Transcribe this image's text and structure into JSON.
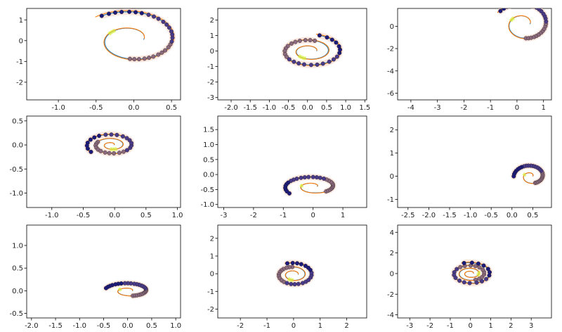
{
  "figure": {
    "rows": 3,
    "cols": 3,
    "colors": {
      "blue_curve": "#1f77b4",
      "orange_curve": "#ff7f0e",
      "marker_dark": "#1c1a7a",
      "marker_light": "#8c6a7d",
      "highlight": "#d9f23a",
      "halo": "#f6d6c8"
    }
  },
  "chart_data": [
    {
      "type": "line",
      "panel": "r1c1",
      "xlim": [
        -1.42,
        0.62
      ],
      "ylim": [
        -2.85,
        1.55
      ],
      "xticks": [
        "-1.0",
        "-0.5",
        "0.0",
        "0.5"
      ],
      "xtick_values": [
        -1.0,
        -0.5,
        0.0,
        0.5
      ],
      "yticks": [
        "-2",
        "-1",
        "0",
        "1"
      ],
      "ytick_values": [
        -2,
        -1,
        0,
        1
      ],
      "spiral": {
        "cx": -0.03,
        "cy": 0.05,
        "a": 0.16,
        "b": 0.38,
        "turns": 1.35,
        "rx": 1,
        "ry": 2.1
      }
    },
    {
      "type": "line",
      "panel": "r1c2",
      "xlim": [
        -2.35,
        1.55
      ],
      "ylim": [
        -3.15,
        2.75
      ],
      "xticks": [
        "-2.0",
        "-1.5",
        "-1.0",
        "-0.5",
        "0.0",
        "0.5",
        "1.0",
        "1.5"
      ],
      "xtick_values": [
        -2.0,
        -1.5,
        -1.0,
        -0.5,
        0.0,
        0.5,
        1.0,
        1.5
      ],
      "yticks": [
        "-3",
        "-2",
        "-1",
        "0",
        "1",
        "2"
      ],
      "ytick_values": [
        -3,
        -2,
        -1,
        0,
        1,
        2
      ],
      "spiral": {
        "cx": 0.05,
        "cy": 0.0,
        "a": 0.22,
        "b": 0.36,
        "turns": 2.2,
        "rx": 0.85,
        "ry": 1.05
      }
    },
    {
      "type": "line",
      "panel": "r1c3",
      "xlim": [
        -4.5,
        1.3
      ],
      "ylim": [
        -6.6,
        1.6
      ],
      "xticks": [
        "-4",
        "-3",
        "-2",
        "-1",
        "0",
        "1"
      ],
      "xtick_values": [
        -4,
        -3,
        -2,
        -1,
        0,
        1
      ],
      "yticks": [
        "-6",
        "-4",
        "-2",
        "0"
      ],
      "ytick_values": [
        -6,
        -4,
        -2,
        0
      ],
      "spiral": {
        "cx": 0.25,
        "cy": 0.2,
        "a": 0.2,
        "b": 0.5,
        "turns": 1.4,
        "rx": 1.2,
        "ry": 2.2
      }
    },
    {
      "type": "line",
      "panel": "r2c1",
      "xlim": [
        -1.4,
        1.05
      ],
      "ylim": [
        -1.3,
        0.6
      ],
      "xticks": [
        "-1.0",
        "-0.5",
        "0.0",
        "0.5",
        "1.0"
      ],
      "xtick_values": [
        -1.0,
        -0.5,
        0.0,
        0.5,
        1.0
      ],
      "yticks": [
        "-1.0",
        "-0.5",
        "0.0",
        "0.5"
      ],
      "ytick_values": [
        -1.0,
        -0.5,
        0.0,
        0.5
      ],
      "spiral": {
        "cx": -0.05,
        "cy": 0.0,
        "a": 0.05,
        "b": 0.17,
        "turns": 2.6,
        "rx": 0.82,
        "ry": 0.5
      }
    },
    {
      "type": "line",
      "panel": "r2c2",
      "xlim": [
        -3.2,
        1.8
      ],
      "ylim": [
        -1.1,
        1.95
      ],
      "xticks": [
        "-3",
        "-2",
        "-1",
        "0",
        "1"
      ],
      "xtick_values": [
        -3,
        -2,
        -1,
        0,
        1
      ],
      "yticks": [
        "-1.0",
        "-0.5",
        "0.0",
        "0.5",
        "1.0",
        "1.5"
      ],
      "ytick_values": [
        -1.0,
        -0.5,
        0.0,
        0.5,
        1.0,
        1.5
      ],
      "spiral": {
        "cx": 0.0,
        "cy": -0.4,
        "a": 0.07,
        "b": 0.28,
        "turns": 1.6,
        "rx": 1.9,
        "ry": 0.75
      }
    },
    {
      "type": "line",
      "panel": "r2c3",
      "xlim": [
        -2.75,
        0.95
      ],
      "ylim": [
        -1.35,
        2.6
      ],
      "xticks": [
        "-2.5",
        "-2.0",
        "-1.5",
        "-1.0",
        "-0.5",
        "0.0",
        "0.5"
      ],
      "xtick_values": [
        -2.5,
        -2.0,
        -1.5,
        -1.0,
        -0.5,
        0.0,
        0.5
      ],
      "yticks": [
        "-1",
        "0",
        "1",
        "2"
      ],
      "ytick_values": [
        -1,
        0,
        1,
        2
      ],
      "spiral": {
        "cx": 0.45,
        "cy": 0.0,
        "a": 0.06,
        "b": 0.3,
        "turns": 1.5,
        "rx": 0.8,
        "ry": 1.05
      }
    },
    {
      "type": "line",
      "panel": "r3c1",
      "xlim": [
        -2.1,
        1.1
      ],
      "ylim": [
        -0.6,
        1.45
      ],
      "xticks": [
        "-2.0",
        "-1.5",
        "-1.0",
        "-0.5",
        "0.0",
        "0.5",
        "1.0"
      ],
      "xtick_values": [
        -2.0,
        -1.5,
        -1.0,
        -0.5,
        0.0,
        0.5,
        1.0
      ],
      "yticks": [
        "-0.5",
        "0.0",
        "0.5",
        "1.0"
      ],
      "ytick_values": [
        -0.5,
        0.0,
        0.5,
        1.0
      ],
      "spiral": {
        "cx": 0.02,
        "cy": 0.0,
        "a": 0.05,
        "b": 0.2,
        "turns": 1.45,
        "rx": 1.45,
        "ry": 0.55
      }
    },
    {
      "type": "line",
      "panel": "r3c2",
      "xlim": [
        -2.85,
        2.75
      ],
      "ylim": [
        -2.5,
        2.75
      ],
      "xticks": [
        "-2",
        "-1",
        "0",
        "1",
        "2"
      ],
      "xtick_values": [
        -2,
        -1,
        0,
        1,
        2
      ],
      "yticks": [
        "-2",
        "-1",
        "0",
        "1",
        "2"
      ],
      "ytick_values": [
        -2,
        -1,
        0,
        1,
        2
      ],
      "spiral": {
        "cx": 0.0,
        "cy": -0.05,
        "a": 0.2,
        "b": 0.3,
        "turns": 2.3,
        "rx": 0.85,
        "ry": 0.75
      }
    },
    {
      "type": "line",
      "panel": "r3c3",
      "xlim": [
        -3.6,
        4.0
      ],
      "ylim": [
        -4.3,
        4.7
      ],
      "xticks": [
        "-3",
        "-2",
        "-1",
        "0",
        "1",
        "2",
        "3"
      ],
      "xtick_values": [
        -3,
        -2,
        -1,
        0,
        1,
        2,
        3
      ],
      "yticks": [
        "-4",
        "-2",
        "0",
        "2",
        "4"
      ],
      "ytick_values": [
        -4,
        -2,
        0,
        2,
        4
      ],
      "spiral": {
        "cx": 0.0,
        "cy": 0.0,
        "a": 0.15,
        "b": 0.28,
        "turns": 3.3,
        "rx": 0.96,
        "ry": 1.0
      }
    }
  ]
}
